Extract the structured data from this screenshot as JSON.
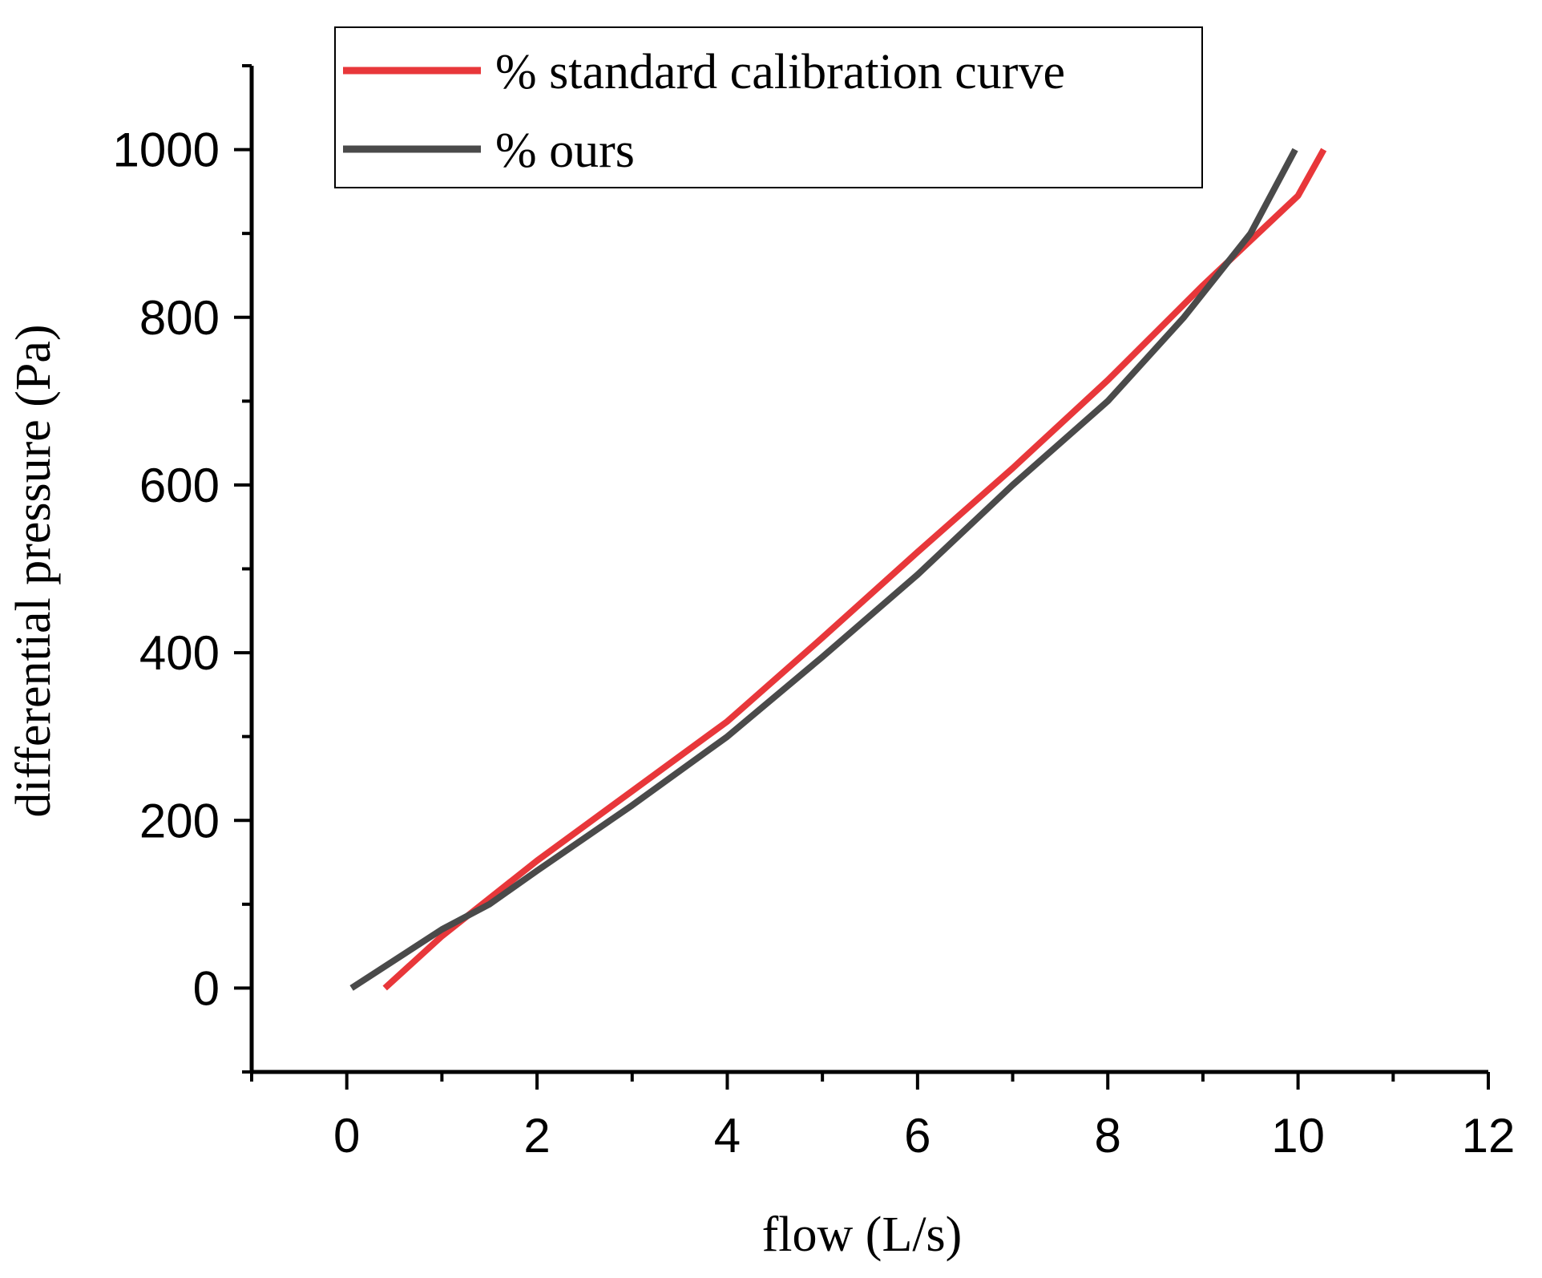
{
  "chart_data": {
    "type": "line",
    "title": "",
    "xlabel": "flow (L/s)",
    "ylabel": "differential pressure (Pa)",
    "xlim": [
      -1,
      12
    ],
    "ylim": [
      -100,
      1100
    ],
    "xticks": [
      0,
      2,
      4,
      6,
      8,
      10,
      12
    ],
    "xtick_labels": [
      "0",
      "2",
      "4",
      "6",
      "8",
      "10",
      "12"
    ],
    "xminor": [
      -1,
      1,
      3,
      5,
      7,
      9,
      11
    ],
    "yticks": [
      0,
      200,
      400,
      600,
      800,
      1000
    ],
    "ytick_labels": [
      "0",
      "200",
      "400",
      "600",
      "800",
      "1000"
    ],
    "yminor": [
      -100,
      100,
      300,
      500,
      700,
      900,
      1100
    ],
    "grid": false,
    "legend_position": "top-center",
    "series": [
      {
        "name": "% standard calibration curve",
        "color": "#e8373a",
        "x": [
          0.4,
          1.0,
          2.0,
          3.0,
          4.0,
          5.0,
          6.0,
          7.0,
          8.0,
          9.0,
          10.0,
          10.27
        ],
        "y": [
          0,
          62,
          152,
          235,
          318,
          418,
          520,
          620,
          725,
          838,
          945,
          1000
        ]
      },
      {
        "name": "% ours",
        "color": "#4a4a4a",
        "x": [
          0.05,
          1.0,
          1.5,
          2.0,
          3.0,
          4.0,
          5.0,
          6.0,
          7.0,
          8.0,
          8.8,
          9.5,
          9.97
        ],
        "y": [
          0,
          70,
          100,
          140,
          218,
          300,
          395,
          493,
          600,
          700,
          800,
          900,
          1000
        ]
      }
    ]
  }
}
